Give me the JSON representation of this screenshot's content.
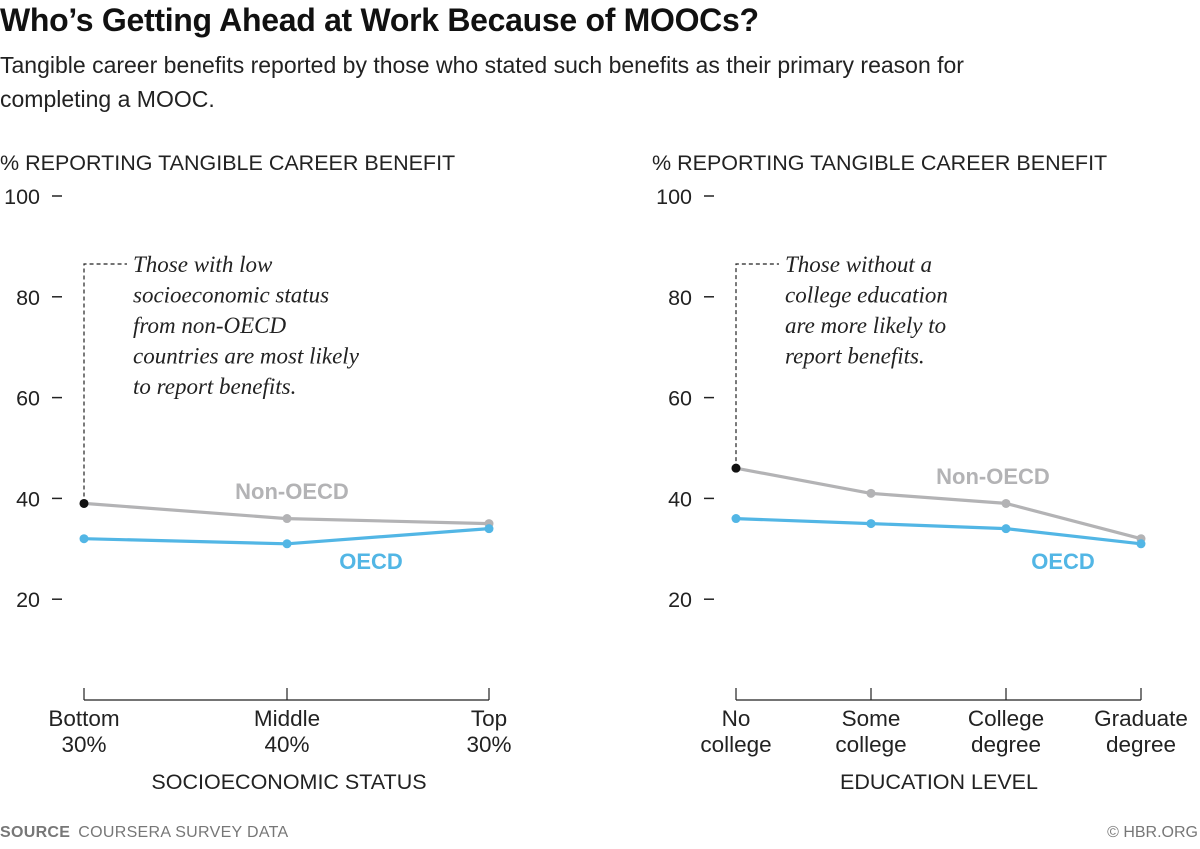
{
  "header": {
    "title": "Who’s Getting Ahead at Work Because of MOOCs?",
    "subtitle": "Tangible career benefits reported by those who stated such benefits as their primary reason for completing a MOOC."
  },
  "footer": {
    "source_label": "SOURCE",
    "source_text": "COURSERA SURVEY DATA",
    "credit": "© HBR.ORG"
  },
  "colors": {
    "non_oecd": "#b3b3b5",
    "oecd": "#52b6e5",
    "axis": "#222222"
  },
  "chart_data": [
    {
      "type": "line",
      "ylabel": "% REPORTING TANGIBLE CAREER BENEFIT",
      "xlabel": "SOCIOECONOMIC STATUS",
      "ylim": [
        0,
        100
      ],
      "yticks": [
        20,
        40,
        60,
        80,
        100
      ],
      "categories": [
        [
          "Bottom",
          "30%"
        ],
        [
          "Middle",
          "40%"
        ],
        [
          "Top",
          "30%"
        ]
      ],
      "series": [
        {
          "name": "Non-OECD",
          "values": [
            39,
            36,
            35
          ]
        },
        {
          "name": "OECD",
          "values": [
            32,
            31,
            34
          ]
        }
      ],
      "annotation": {
        "lines": [
          "Those with low",
          "socioeconomic status",
          "from non-OECD",
          "countries are most likely",
          "to report benefits."
        ],
        "series_index": 0,
        "point_index": 0
      }
    },
    {
      "type": "line",
      "ylabel": "% REPORTING TANGIBLE CAREER BENEFIT",
      "xlabel": "EDUCATION LEVEL",
      "ylim": [
        0,
        100
      ],
      "yticks": [
        20,
        40,
        60,
        80,
        100
      ],
      "categories": [
        [
          "No",
          "college"
        ],
        [
          "Some",
          "college"
        ],
        [
          "College",
          "degree"
        ],
        [
          "Graduate",
          "degree"
        ]
      ],
      "series": [
        {
          "name": "Non-OECD",
          "values": [
            46,
            41,
            39,
            32
          ]
        },
        {
          "name": "OECD",
          "values": [
            36,
            35,
            34,
            31
          ]
        }
      ],
      "annotation": {
        "lines": [
          "Those without a",
          "college education",
          "are more likely to",
          "report benefits."
        ],
        "series_index": 0,
        "point_index": 0
      }
    }
  ]
}
